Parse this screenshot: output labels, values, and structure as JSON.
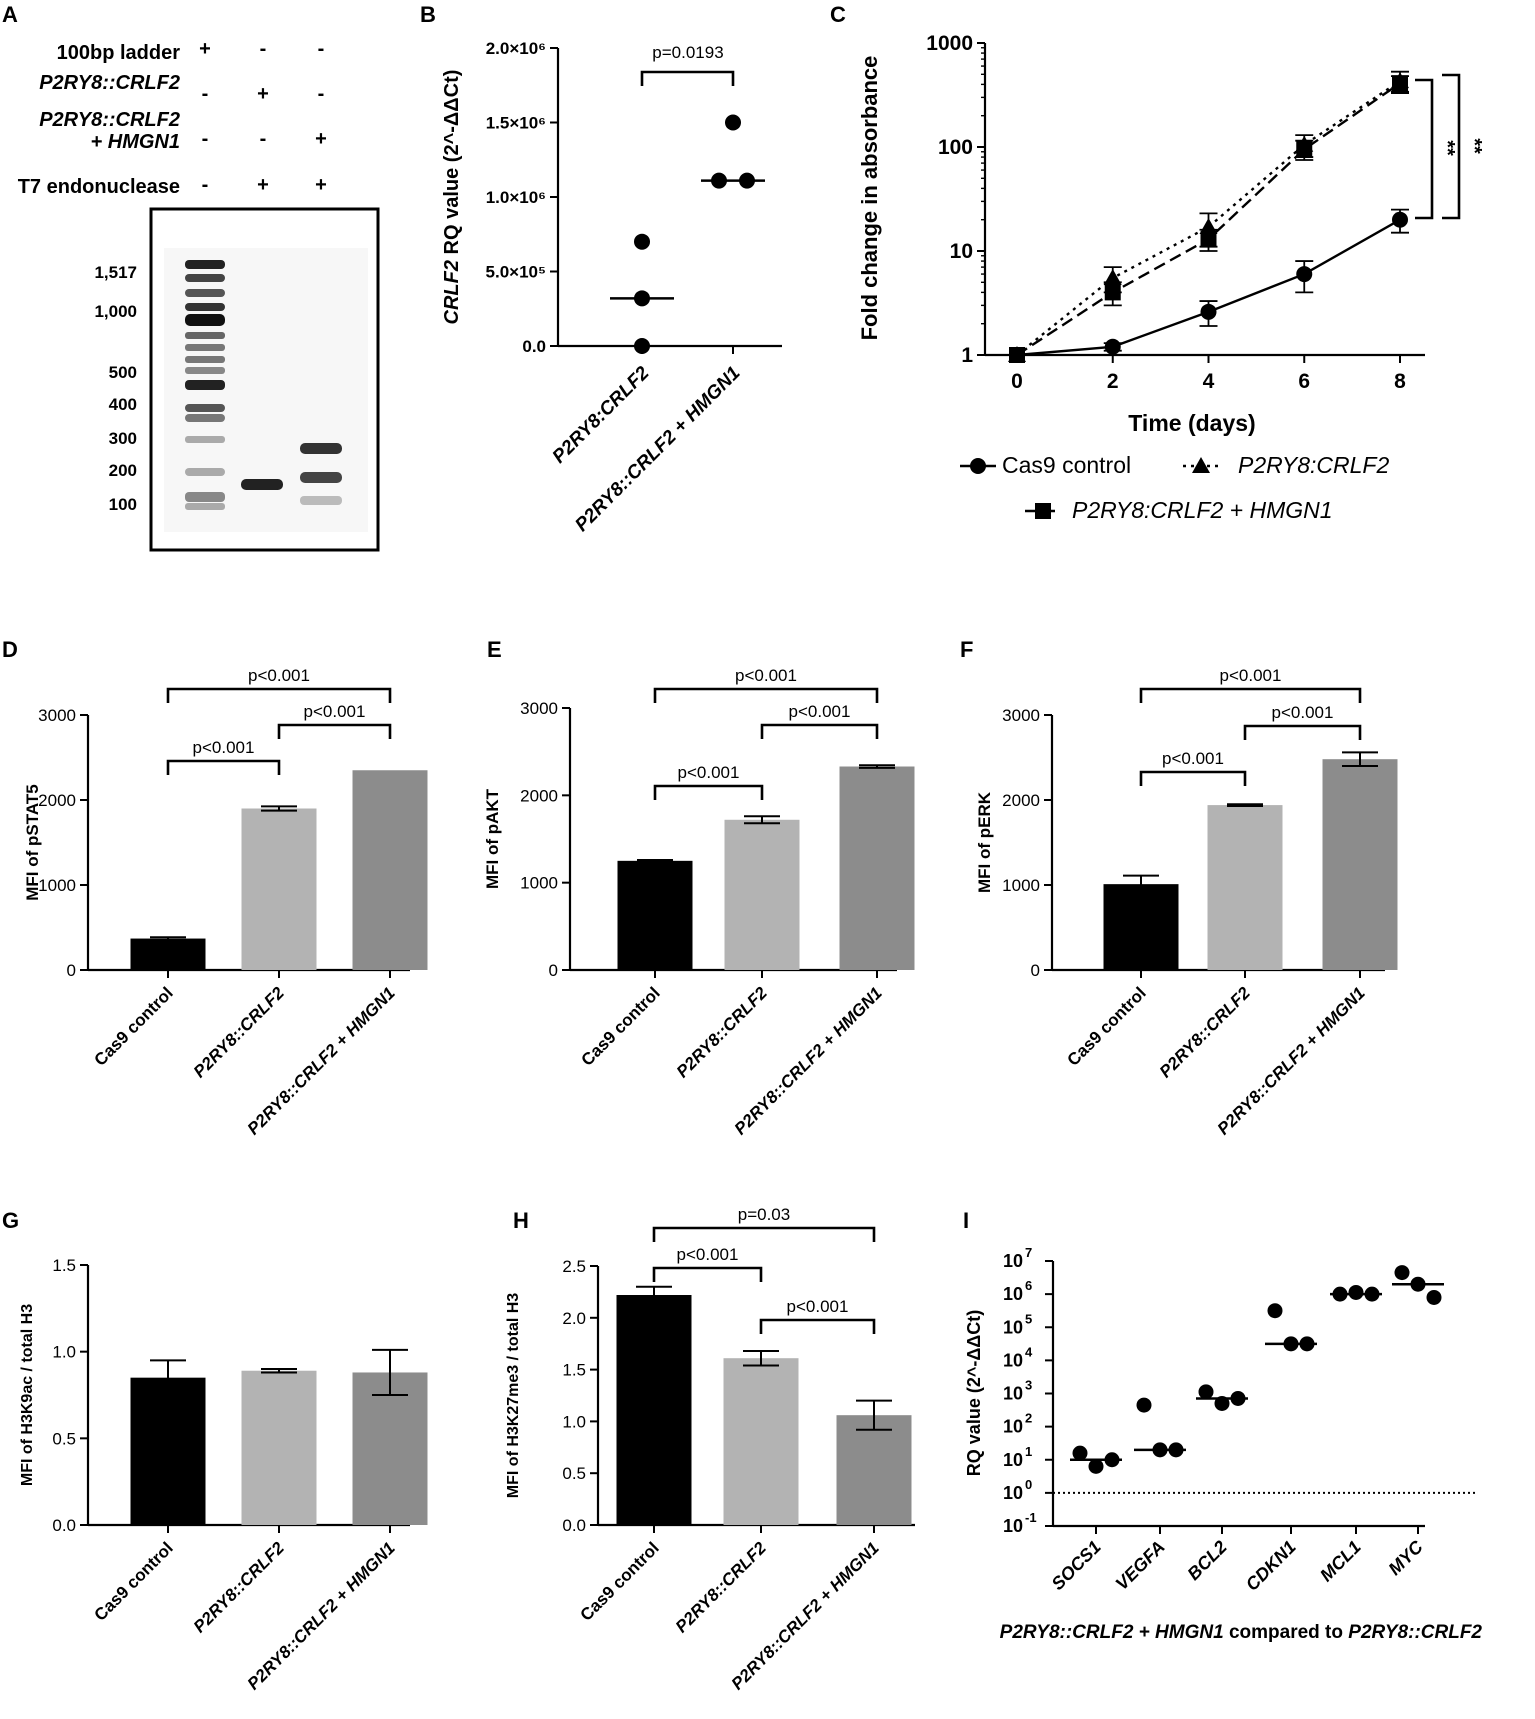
{
  "colors": {
    "black": "#000000",
    "light": "#b3b3b3",
    "mid": "#8c8c8c"
  },
  "panels": {
    "A": "A",
    "B": "B",
    "C": "C",
    "D": "D",
    "E": "E",
    "F": "F",
    "G": "G",
    "H": "H",
    "I": "I"
  },
  "gel": {
    "rows": [
      {
        "label": "100bp ladder",
        "signs": [
          "+",
          "-",
          "-"
        ]
      },
      {
        "label": "P2RY8::CRLF2",
        "signs": [
          "-",
          "+",
          "-"
        ]
      },
      {
        "label": "P2RY8::CRLF2",
        "label2": "+ HMGN1",
        "signs": [
          "-",
          "-",
          "+"
        ]
      },
      {
        "label": "T7 endonuclease",
        "signs": [
          "-",
          "+",
          "+"
        ]
      }
    ],
    "sizes": [
      "1,517",
      "1,000",
      "500",
      "400",
      "300",
      "200",
      "100"
    ]
  },
  "chart_data": [
    {
      "panel": "B",
      "type": "scatter",
      "ylabel_italic": "CRLF2",
      "ylabel": "RQ value (2^-ΔΔCt)",
      "ylim": [
        0,
        2000000
      ],
      "yticks": [
        "2.0×10⁶",
        "1.5×10⁶",
        "1.0×10⁶",
        "5.0×10⁵",
        "0.0"
      ],
      "categories": [
        "P2RY8:CRLF2",
        "P2RY8::CRLF2 + HMGN1"
      ],
      "points": [
        [
          700000,
          320000,
          0
        ],
        [
          1500000,
          1110000,
          1110000
        ]
      ],
      "medians": [
        320000,
        1110000
      ],
      "annotations": [
        "p=0.0193"
      ]
    },
    {
      "panel": "C",
      "type": "line",
      "xlabel": "Time (days)",
      "ylabel": "Fold change in absorbance",
      "yscale": "log",
      "ylim": [
        1,
        1000
      ],
      "yticks": [
        "1000",
        "100",
        "10",
        "1"
      ],
      "x": [
        0,
        2,
        4,
        6,
        8
      ],
      "xticks": [
        "0",
        "2",
        "4",
        "6",
        "8"
      ],
      "series": [
        {
          "name": "Cas9 control",
          "marker": "circle",
          "values": [
            1,
            1.2,
            2.6,
            6,
            20
          ],
          "err": [
            0,
            0.1,
            0.7,
            2,
            5
          ]
        },
        {
          "name": "P2RY8:CRLF2",
          "marker": "triangle",
          "values": [
            1,
            5.5,
            17,
            105,
            430
          ],
          "err": [
            0,
            1.5,
            6,
            25,
            100
          ]
        },
        {
          "name": "P2RY8:CRLF2 + HMGN1",
          "marker": "square",
          "values": [
            1,
            4,
            13,
            95,
            410
          ],
          "err": [
            0,
            1,
            3,
            20,
            70
          ]
        }
      ],
      "annotations": [
        "**",
        "**"
      ]
    },
    {
      "panel": "D",
      "type": "bar",
      "ylabel": "MFI of pSTAT5",
      "ylim": [
        0,
        3000
      ],
      "yticks": [
        "3000",
        "2000",
        "1000",
        "0"
      ],
      "categories": [
        "Cas9 control",
        "P2RY8::CRLF2",
        "P2RY8::CRLF2 + HMGN1"
      ],
      "values": [
        370,
        1900,
        2350
      ],
      "err": [
        15,
        25,
        0
      ],
      "annotations": [
        "p<0.001",
        "p<0.001",
        "p<0.001"
      ]
    },
    {
      "panel": "E",
      "type": "bar",
      "ylabel": "MFI of pAKT",
      "ylim": [
        0,
        3000
      ],
      "yticks": [
        "3000",
        "2000",
        "1000",
        "0"
      ],
      "categories": [
        "Cas9 control",
        "P2RY8::CRLF2",
        "P2RY8::CRLF2 + HMGN1"
      ],
      "values": [
        1250,
        1720,
        2330
      ],
      "err": [
        10,
        40,
        15
      ],
      "annotations": [
        "p<0.001",
        "p<0.001",
        "p<0.001"
      ]
    },
    {
      "panel": "F",
      "type": "bar",
      "ylabel": "MFI of pERK",
      "ylim": [
        0,
        3000
      ],
      "yticks": [
        "3000",
        "2000",
        "1000",
        "0"
      ],
      "categories": [
        "Cas9 control",
        "P2RY8::CRLF2",
        "P2RY8::CRLF2 + HMGN1"
      ],
      "values": [
        1010,
        1940,
        2480
      ],
      "err": [
        100,
        10,
        80
      ],
      "annotations": [
        "p<0.001",
        "p<0.001",
        "p<0.001"
      ]
    },
    {
      "panel": "G",
      "type": "bar",
      "ylabel": "MFI of H3K9ac / total H3",
      "ylim": [
        0,
        1.5
      ],
      "yticks": [
        "1.5",
        "1.0",
        "0.5",
        "0.0"
      ],
      "categories": [
        "Cas9 control",
        "P2RY8::CRLF2",
        "P2RY8::CRLF2 + HMGN1"
      ],
      "values": [
        0.85,
        0.89,
        0.88
      ],
      "err": [
        0.1,
        0.01,
        0.13
      ],
      "annotations": []
    },
    {
      "panel": "H",
      "type": "bar",
      "ylabel": "MFI of H3K27me3 / total H3",
      "ylim": [
        0,
        2.5
      ],
      "yticks": [
        "2.5",
        "2.0",
        "1.5",
        "1.0",
        "0.5",
        "0.0"
      ],
      "categories": [
        "Cas9 control",
        "P2RY8::CRLF2",
        "P2RY8::CRLF2 + HMGN1"
      ],
      "values": [
        2.22,
        1.61,
        1.06
      ],
      "err": [
        0.08,
        0.07,
        0.14
      ],
      "annotations": [
        "p<0.001",
        "p<0.001",
        "p=0.03"
      ]
    },
    {
      "panel": "I",
      "type": "scatter",
      "yscale": "log",
      "ylabel": "RQ value (2^-ΔΔCt)",
      "yticks": [
        {
          "base": "10",
          "exp": "7"
        },
        {
          "base": "10",
          "exp": "6"
        },
        {
          "base": "10",
          "exp": "5"
        },
        {
          "base": "10",
          "exp": "4"
        },
        {
          "base": "10",
          "exp": "3"
        },
        {
          "base": "10",
          "exp": "2"
        },
        {
          "base": "10",
          "exp": "1"
        },
        {
          "base": "10",
          "exp": "0"
        },
        {
          "base": "10",
          "exp": "-1"
        }
      ],
      "ylim_log10": [
        -1,
        7
      ],
      "categories": [
        "SOCS1",
        "VEGFA",
        "BCL2",
        "CDKN1",
        "MCL1",
        "MYC"
      ],
      "points_log10": [
        [
          1.2,
          0.8,
          1.0
        ],
        [
          2.65,
          1.3,
          1.3
        ],
        [
          3.05,
          2.7,
          2.85
        ],
        [
          5.5,
          4.5,
          4.5
        ],
        [
          6.0,
          6.05,
          6.0
        ],
        [
          6.65,
          6.3,
          5.9
        ]
      ],
      "medians_log10": [
        1.0,
        1.3,
        2.85,
        4.5,
        6.0,
        6.3
      ],
      "reference_line_log10": 0,
      "xlabel_parts": [
        "P2RY8::CRLF2 + HMGN1",
        " compared to ",
        "P2RY8::CRLF2"
      ]
    }
  ]
}
